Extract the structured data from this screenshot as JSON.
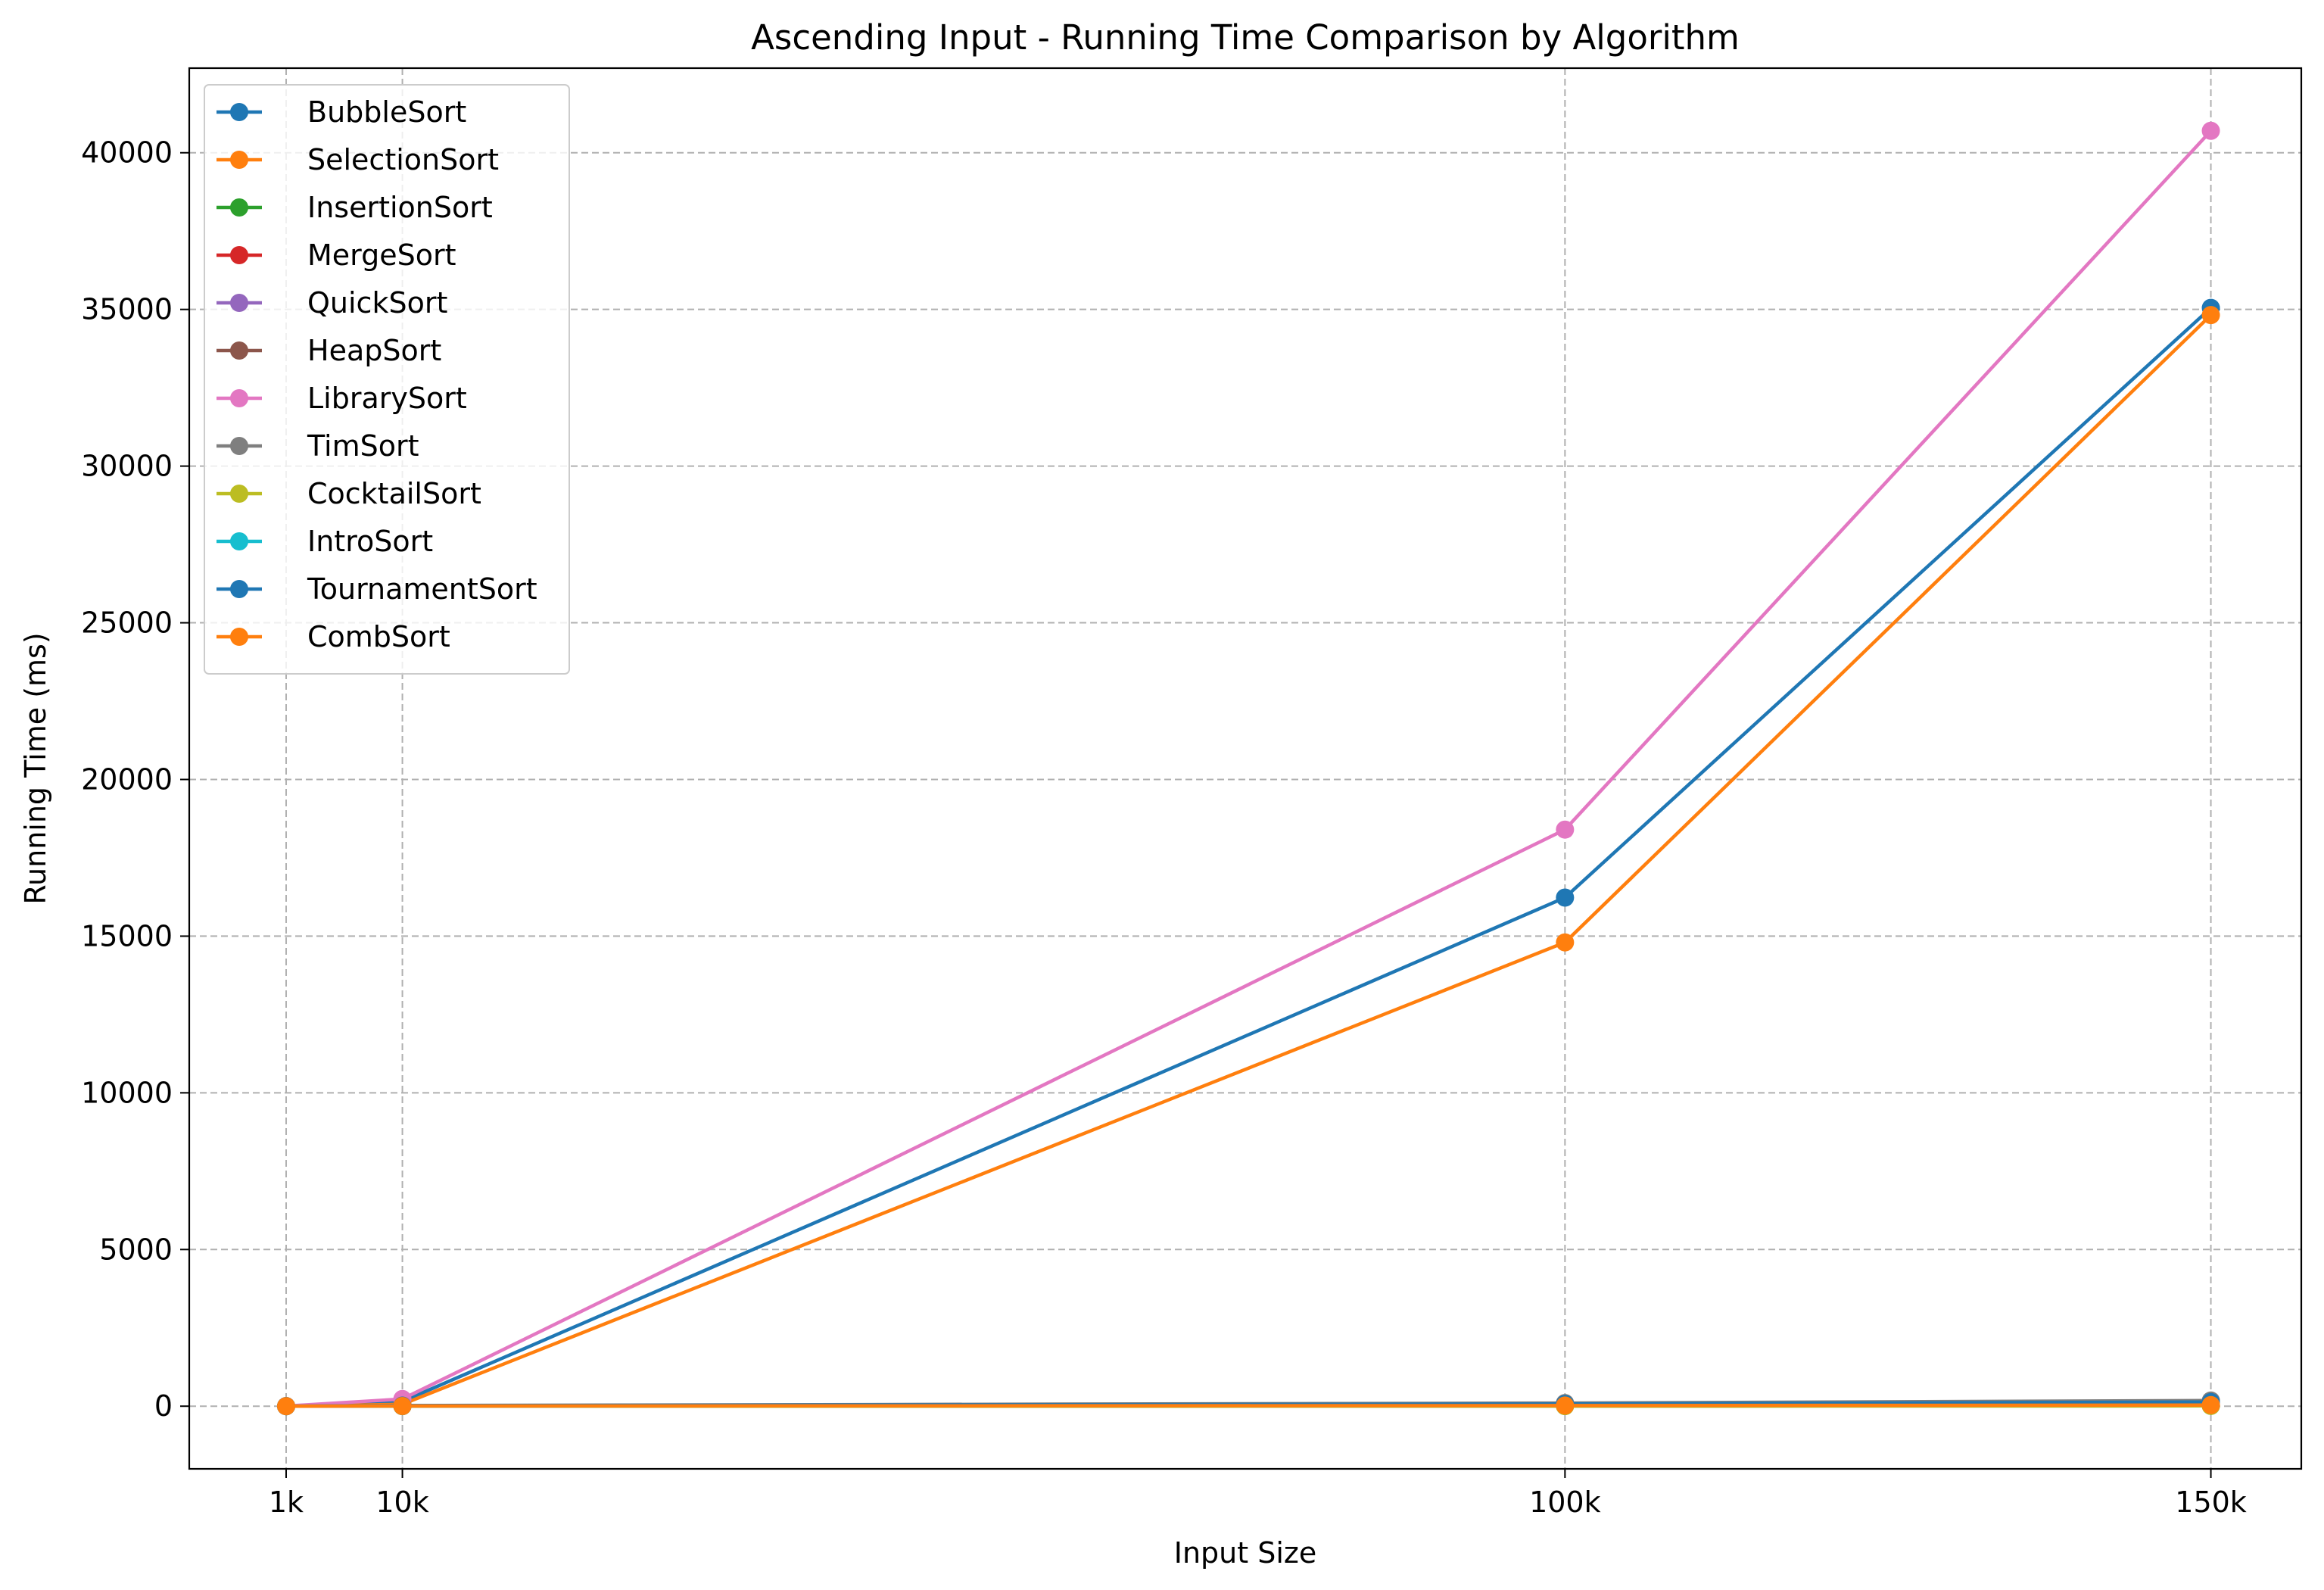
{
  "chart_data": {
    "type": "line",
    "title": "Ascending Input - Running Time Comparison by Algorithm",
    "xlabel": "Input Size",
    "ylabel": "Running Time (ms)",
    "x": [
      1000,
      10000,
      100000,
      150000
    ],
    "x_tick_labels": [
      "1k",
      "10k",
      "100k",
      "150k"
    ],
    "xlim": [
      -6500,
      157000
    ],
    "ylim": [
      -2000,
      42700
    ],
    "y_ticks": [
      0,
      5000,
      10000,
      15000,
      20000,
      25000,
      30000,
      35000,
      40000
    ],
    "grid": true,
    "legend_position": "upper-left",
    "series": [
      {
        "name": "BubbleSort",
        "color": "#1f77b4",
        "values": [
          1,
          150,
          16230,
          35050
        ]
      },
      {
        "name": "SelectionSort",
        "color": "#ff7f0e",
        "values": [
          1,
          60,
          14800,
          34820
        ]
      },
      {
        "name": "InsertionSort",
        "color": "#2ca02c",
        "values": [
          0,
          1,
          5,
          10
        ]
      },
      {
        "name": "MergeSort",
        "color": "#d62728",
        "values": [
          0,
          5,
          40,
          70
        ]
      },
      {
        "name": "QuickSort",
        "color": "#9467bd",
        "values": [
          0,
          4,
          30,
          50
        ]
      },
      {
        "name": "HeapSort",
        "color": "#8c564b",
        "values": [
          1,
          10,
          90,
          160
        ]
      },
      {
        "name": "LibrarySort",
        "color": "#e377c2",
        "values": [
          2,
          230,
          18400,
          40700
        ]
      },
      {
        "name": "TimSort",
        "color": "#7f7f7f",
        "values": [
          1,
          20,
          100,
          180
        ]
      },
      {
        "name": "CocktailSort",
        "color": "#bcbd22",
        "values": [
          0,
          1,
          5,
          10
        ]
      },
      {
        "name": "IntroSort",
        "color": "#17becf",
        "values": [
          0,
          5,
          35,
          60
        ]
      },
      {
        "name": "TournamentSort",
        "color": "#1f77b4",
        "values": [
          1,
          15,
          70,
          130
        ]
      },
      {
        "name": "CombSort",
        "color": "#ff7f0e",
        "values": [
          0,
          5,
          20,
          35
        ]
      }
    ]
  }
}
